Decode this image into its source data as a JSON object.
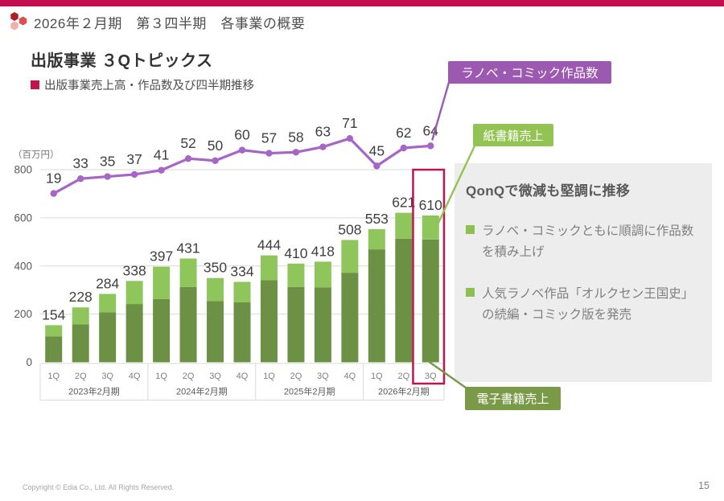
{
  "header": {
    "title": "2026年２月期　第３四半期　各事業の概要"
  },
  "slide": {
    "title": "出版事業 ３Qトピックス",
    "subtitle": "出版事業売上高・作品数及び四半期推移"
  },
  "callouts": {
    "line": {
      "label": "ラノベ・コミック作品数",
      "color": "#9C59B0"
    },
    "paper": {
      "label": "紙書籍売上",
      "color": "#92C353"
    },
    "ebook": {
      "label": "電子書籍売上",
      "color": "#7A9A47"
    }
  },
  "panel": {
    "heading": "QonQで微減も堅調に推移",
    "bullets": [
      "ラノベ・コミックともに順調に作品数を積み上げ",
      "人気ラノベ作品「オルクセン王国史」の続編・コミック版を発売"
    ]
  },
  "chart_data": {
    "type": "combo-stacked-bar-line",
    "unit_label": "（百万円）",
    "y_axis": {
      "ticks": [
        0,
        200,
        400,
        600,
        800
      ],
      "max": 800
    },
    "group_labels": [
      "2023年2月期",
      "2024年2月期",
      "2025年2月期",
      "2026年2月期"
    ],
    "group_sizes": [
      4,
      4,
      4,
      3
    ],
    "quarters": [
      "1Q",
      "2Q",
      "3Q",
      "4Q",
      "1Q",
      "2Q",
      "3Q",
      "4Q",
      "1Q",
      "2Q",
      "3Q",
      "4Q",
      "1Q",
      "2Q",
      "3Q"
    ],
    "bar_totals": [
      154,
      228,
      284,
      338,
      397,
      431,
      350,
      334,
      444,
      410,
      418,
      508,
      553,
      621,
      610
    ],
    "series": [
      {
        "name": "電子書籍売上",
        "color": "#6D9144",
        "values": [
          107,
          157,
          207,
          242,
          263,
          313,
          254,
          249,
          341,
          313,
          311,
          372,
          469,
          513,
          510
        ]
      },
      {
        "name": "紙書籍売上",
        "color": "#8FC65C",
        "values": [
          47,
          71,
          77,
          96,
          134,
          118,
          96,
          85,
          103,
          97,
          107,
          136,
          84,
          108,
          100
        ]
      }
    ],
    "line_series": {
      "name": "ラノベ・コミック作品数",
      "color": "#A765C5",
      "values": [
        19,
        33,
        35,
        37,
        41,
        52,
        50,
        60,
        57,
        58,
        63,
        71,
        45,
        62,
        64
      ]
    },
    "highlight": {
      "quarter_index": 14,
      "color": "#C0144C"
    }
  },
  "footer": {
    "copyright": "Copyright © Edia Co., Ltd. All Rights Reserved.",
    "page_number": "15"
  }
}
